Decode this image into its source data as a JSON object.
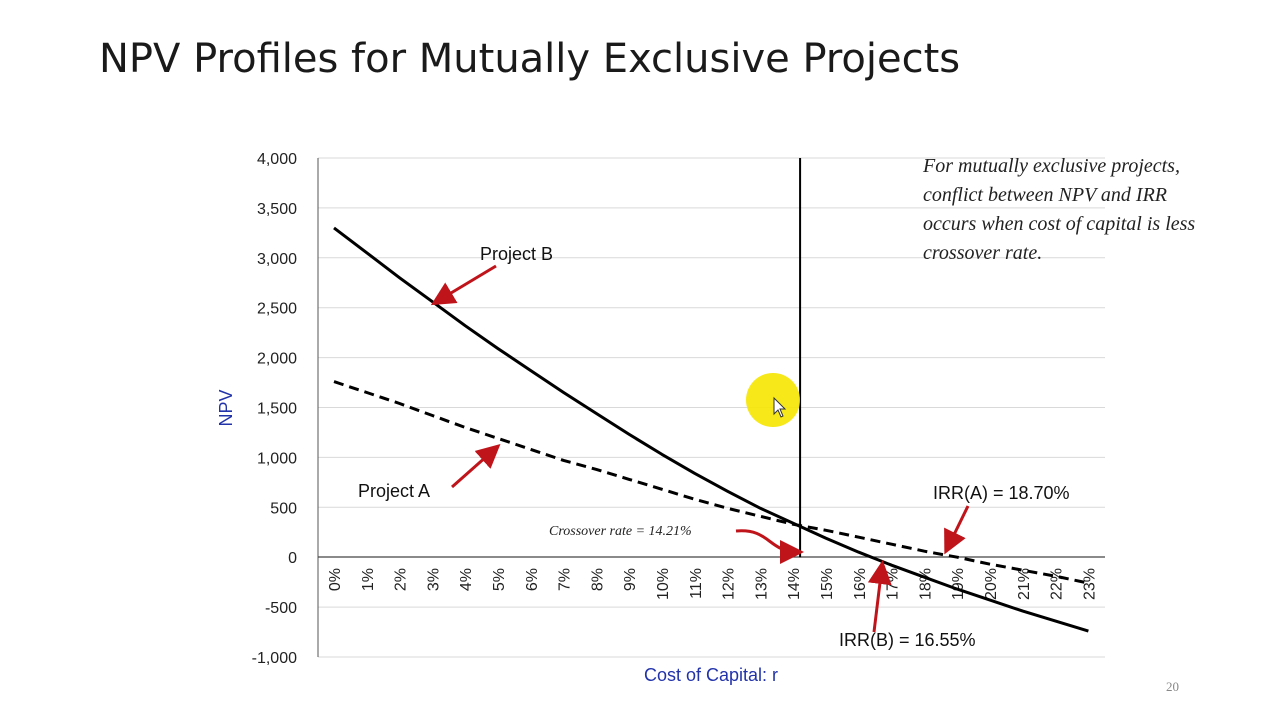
{
  "slide": {
    "title": "NPV Profiles for Mutually Exclusive Projects",
    "page_number": "20",
    "note": "For mutually exclusive projects,\nconflict between NPV and IRR\noccurs when cost of capital is less\ncrossover rate."
  },
  "colors": {
    "axis_title": "#2233aa",
    "arrow": "#c0141b",
    "line": "#000000",
    "grid": "#d9d9d9",
    "cursor_highlight": "#f5e600"
  },
  "chart_data": {
    "type": "line",
    "xlabel": "Cost of Capital: r",
    "ylabel": "NPV",
    "ylim": [
      -1000,
      4000
    ],
    "y_ticks": [
      "4,000",
      "3,500",
      "3,000",
      "2,500",
      "2,000",
      "1,500",
      "1,000",
      "500",
      "0",
      "-500",
      "-1,000"
    ],
    "y_tick_values": [
      4000,
      3500,
      3000,
      2500,
      2000,
      1500,
      1000,
      500,
      0,
      -500,
      -1000
    ],
    "categories": [
      "0%",
      "1%",
      "2%",
      "3%",
      "4%",
      "5%",
      "6%",
      "7%",
      "8%",
      "9%",
      "10%",
      "11%",
      "12%",
      "13%",
      "14%",
      "15%",
      "16%",
      "17%",
      "18%",
      "19%",
      "20%",
      "21%",
      "22%",
      "23%"
    ],
    "x": [
      0,
      1,
      2,
      3,
      4,
      5,
      6,
      7,
      8,
      9,
      10,
      11,
      12,
      13,
      14,
      15,
      16,
      17,
      18,
      19,
      20,
      21,
      22,
      23
    ],
    "grid": true,
    "series": [
      {
        "name": "Project B",
        "style": "solid",
        "values": [
          3300,
          3050,
          2800,
          2560,
          2320,
          2090,
          1870,
          1650,
          1440,
          1230,
          1030,
          840,
          660,
          490,
          340,
          190,
          50,
          -80,
          -200,
          -320,
          -430,
          -540,
          -640,
          -740
        ]
      },
      {
        "name": "Project A",
        "style": "dashed",
        "values": [
          1760,
          1650,
          1540,
          1420,
          1300,
          1190,
          1080,
          970,
          880,
          780,
          680,
          580,
          490,
          410,
          330,
          270,
          200,
          130,
          60,
          0,
          -70,
          -130,
          -190,
          -260
        ]
      }
    ],
    "crossover": {
      "x": 14.21,
      "y": 330
    },
    "annotations": {
      "project_b": "Project B",
      "project_a": "Project A",
      "irr_a": "IRR(A) = 18.70%",
      "irr_b": "IRR(B) = 16.55%",
      "crossover": "Crossover rate = 14.21%"
    }
  }
}
